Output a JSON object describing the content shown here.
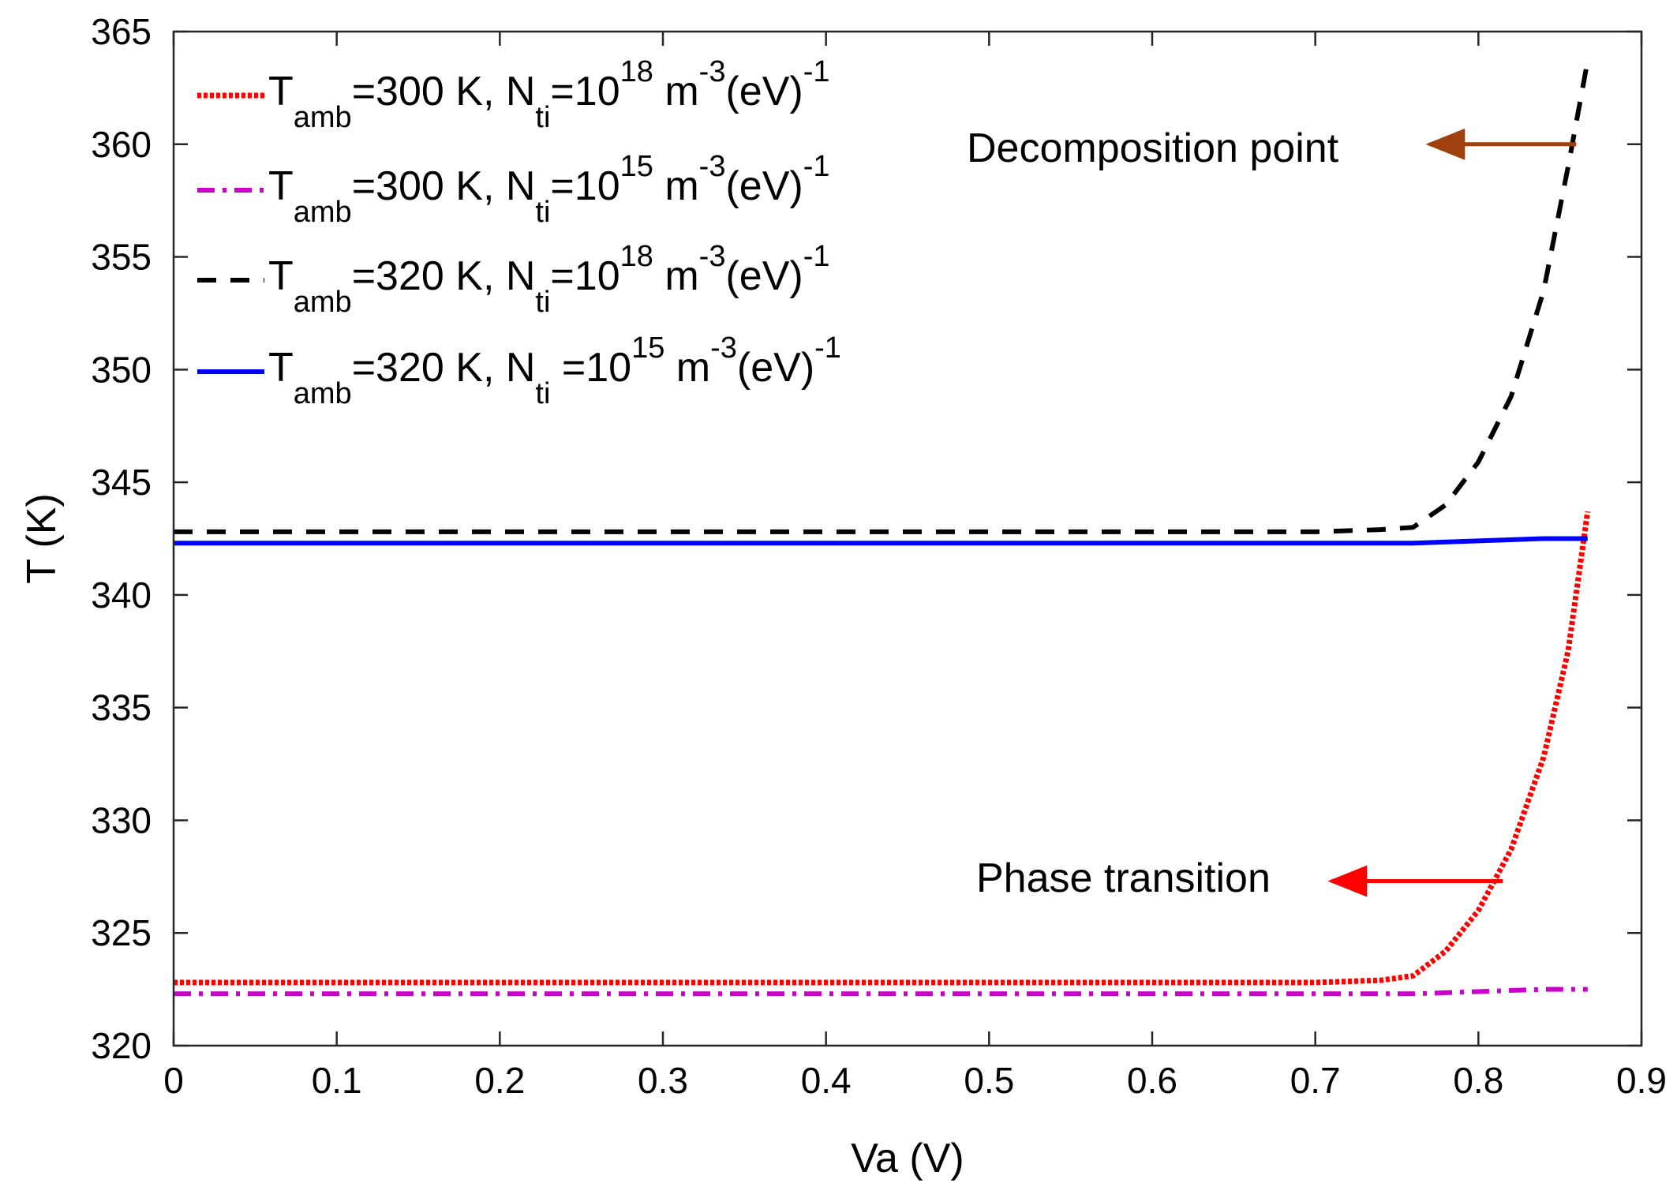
{
  "chart_data": {
    "type": "line",
    "title": "",
    "xlabel": "Va (V)",
    "ylabel": "T (K)",
    "xlim": [
      0,
      0.9
    ],
    "ylim": [
      320,
      365
    ],
    "xticks": [
      0,
      0.1,
      0.2,
      0.3,
      0.4,
      0.5,
      0.6,
      0.7,
      0.8,
      0.9
    ],
    "xtick_labels": [
      "0",
      "0.1",
      "0.2",
      "0.3",
      "0.4",
      "0.5",
      "0.6",
      "0.7",
      "0.8",
      "0.9"
    ],
    "yticks": [
      320,
      325,
      330,
      335,
      340,
      345,
      350,
      355,
      360,
      365
    ],
    "ytick_labels": [
      "320",
      "325",
      "330",
      "335",
      "340",
      "345",
      "350",
      "355",
      "360",
      "365"
    ],
    "grid": false,
    "legend_position": "top-left",
    "series": [
      {
        "name": "T_amb=300 K, N_ti=10^18 m^-3(eV)^-1",
        "legend": {
          "pre": "T",
          "sub1": "amb",
          "mid": "=300 K, N",
          "sub2": "ti",
          "mid2": "=10",
          "sup1": "18",
          "mid3": " m",
          "sup2": "-3",
          "mid4": "(eV)",
          "sup3": "-1"
        },
        "color": "#ff0000",
        "style": "dotted",
        "x": [
          0,
          0.1,
          0.2,
          0.3,
          0.4,
          0.5,
          0.6,
          0.7,
          0.74,
          0.76,
          0.78,
          0.8,
          0.82,
          0.84,
          0.855,
          0.867
        ],
        "y": [
          322.8,
          322.8,
          322.8,
          322.8,
          322.8,
          322.8,
          322.8,
          322.8,
          322.9,
          323.1,
          324.2,
          326.0,
          328.7,
          332.8,
          337.5,
          343.7
        ]
      },
      {
        "name": "T_amb=300 K, N_ti=10^15 m^-3(eV)^-1",
        "legend": {
          "pre": "T",
          "sub1": "amb",
          "mid": "=300 K, N",
          "sub2": "ti",
          "mid2": "=10",
          "sup1": "15",
          "mid3": " m",
          "sup2": "-3",
          "mid4": "(eV)",
          "sup3": "-1"
        },
        "color": "#cc00cc",
        "style": "dashdot",
        "x": [
          0,
          0.1,
          0.2,
          0.3,
          0.4,
          0.5,
          0.6,
          0.7,
          0.76,
          0.8,
          0.84,
          0.867
        ],
        "y": [
          322.3,
          322.3,
          322.3,
          322.3,
          322.3,
          322.3,
          322.3,
          322.3,
          322.3,
          322.4,
          322.5,
          322.5
        ]
      },
      {
        "name": "T_amb=320 K, N_ti=10^18 m^-3(eV)^-1",
        "legend": {
          "pre": "T",
          "sub1": "amb",
          "mid": "=320 K, N",
          "sub2": "ti",
          "mid2": "=10",
          "sup1": "18",
          "mid3": " m",
          "sup2": "-3",
          "mid4": "(eV)",
          "sup3": "-1"
        },
        "color": "#000000",
        "style": "dashed",
        "x": [
          0,
          0.1,
          0.2,
          0.3,
          0.4,
          0.5,
          0.6,
          0.7,
          0.74,
          0.76,
          0.78,
          0.8,
          0.82,
          0.84,
          0.855,
          0.867
        ],
        "y": [
          342.8,
          342.8,
          342.8,
          342.8,
          342.8,
          342.8,
          342.8,
          342.8,
          342.9,
          343.0,
          344.0,
          345.9,
          348.8,
          353.5,
          359.0,
          363.7
        ]
      },
      {
        "name": "T_amb=320 K, N_ti =10^15 m^-3(eV)^-1",
        "legend": {
          "pre": "T",
          "sub1": "amb",
          "mid": "=320 K, N",
          "sub2": "ti",
          "mid2": "  =10",
          "sup1": "15",
          "mid3": " m",
          "sup2": "-3",
          "mid4": "(eV)",
          "sup3": "-1"
        },
        "color": "#0000ff",
        "style": "solid",
        "x": [
          0,
          0.1,
          0.2,
          0.3,
          0.4,
          0.5,
          0.6,
          0.7,
          0.76,
          0.8,
          0.84,
          0.867
        ],
        "y": [
          342.3,
          342.3,
          342.3,
          342.3,
          342.3,
          342.3,
          342.3,
          342.3,
          342.3,
          342.4,
          342.5,
          342.5
        ]
      }
    ],
    "annotations": [
      {
        "text": "Decomposition point",
        "arrow_from": [
          0.86,
          360.0
        ],
        "arrow_to": [
          0.77,
          360.0
        ],
        "color": "#a0400f"
      },
      {
        "text": "Phase transition",
        "arrow_from": [
          0.815,
          327.3
        ],
        "arrow_to": [
          0.71,
          327.3
        ],
        "color": "#ff0000"
      }
    ]
  }
}
